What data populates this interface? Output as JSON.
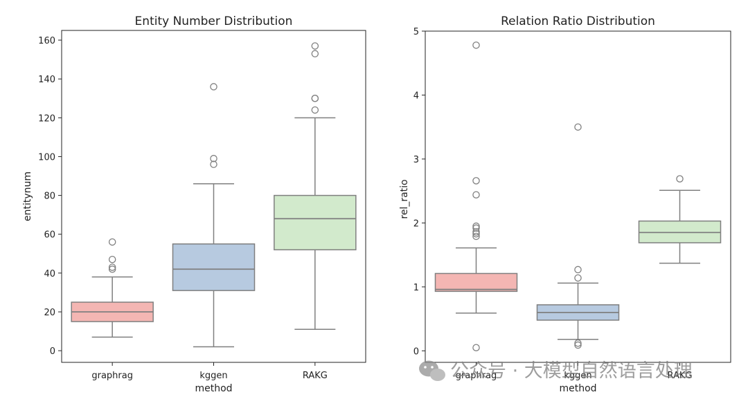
{
  "chart_data": [
    {
      "type": "boxplot",
      "title": "Entity Number Distribution",
      "xlabel": "method",
      "ylabel": "entitynum",
      "ylim": [
        -6,
        165
      ],
      "yticks": [
        0,
        20,
        40,
        60,
        80,
        100,
        120,
        140,
        160
      ],
      "categories": [
        "graphrag",
        "kggen",
        "RAKG"
      ],
      "boxes": [
        {
          "name": "graphrag",
          "color": "#f4b6b3",
          "whisker_low": 7,
          "q1": 15,
          "median": 20,
          "q3": 25,
          "whisker_high": 38,
          "outliers": [
            42,
            43,
            47,
            56
          ]
        },
        {
          "name": "kggen",
          "color": "#b7cae0",
          "whisker_low": 2,
          "q1": 31,
          "median": 42,
          "q3": 55,
          "whisker_high": 86,
          "outliers": [
            96,
            99,
            136
          ]
        },
        {
          "name": "RAKG",
          "color": "#d2eacc",
          "whisker_low": 11,
          "q1": 52,
          "median": 68,
          "q3": 80,
          "whisker_high": 120,
          "outliers": [
            124,
            130,
            130,
            153,
            157
          ]
        }
      ]
    },
    {
      "type": "boxplot",
      "title": "Relation Ratio Distribution",
      "xlabel": "method",
      "ylabel": "rel_ratio",
      "ylim": [
        -0.18,
        5.0
      ],
      "yticks": [
        0,
        1,
        2,
        3,
        4,
        5
      ],
      "categories": [
        "graphrag",
        "kggen",
        "RAKG"
      ],
      "boxes": [
        {
          "name": "graphrag",
          "color": "#f4b6b3",
          "whisker_low": 0.59,
          "q1": 0.93,
          "median": 0.96,
          "q3": 1.21,
          "whisker_high": 1.61,
          "outliers": [
            0.05,
            1.79,
            1.83,
            1.86,
            1.92,
            1.95,
            2.44,
            2.66,
            4.78
          ]
        },
        {
          "name": "kggen",
          "color": "#b7cae0",
          "whisker_low": 0.18,
          "q1": 0.48,
          "median": 0.6,
          "q3": 0.72,
          "whisker_high": 1.06,
          "outliers": [
            0.09,
            0.12,
            1.14,
            1.27,
            3.5
          ]
        },
        {
          "name": "RAKG",
          "color": "#d2eacc",
          "whisker_low": 1.37,
          "q1": 1.69,
          "median": 1.85,
          "q3": 2.03,
          "whisker_high": 2.51,
          "outliers": [
            2.69
          ]
        }
      ]
    }
  ],
  "watermark": {
    "text": "公众号 · 大模型自然语言处理",
    "icon": "wechat-icon"
  }
}
